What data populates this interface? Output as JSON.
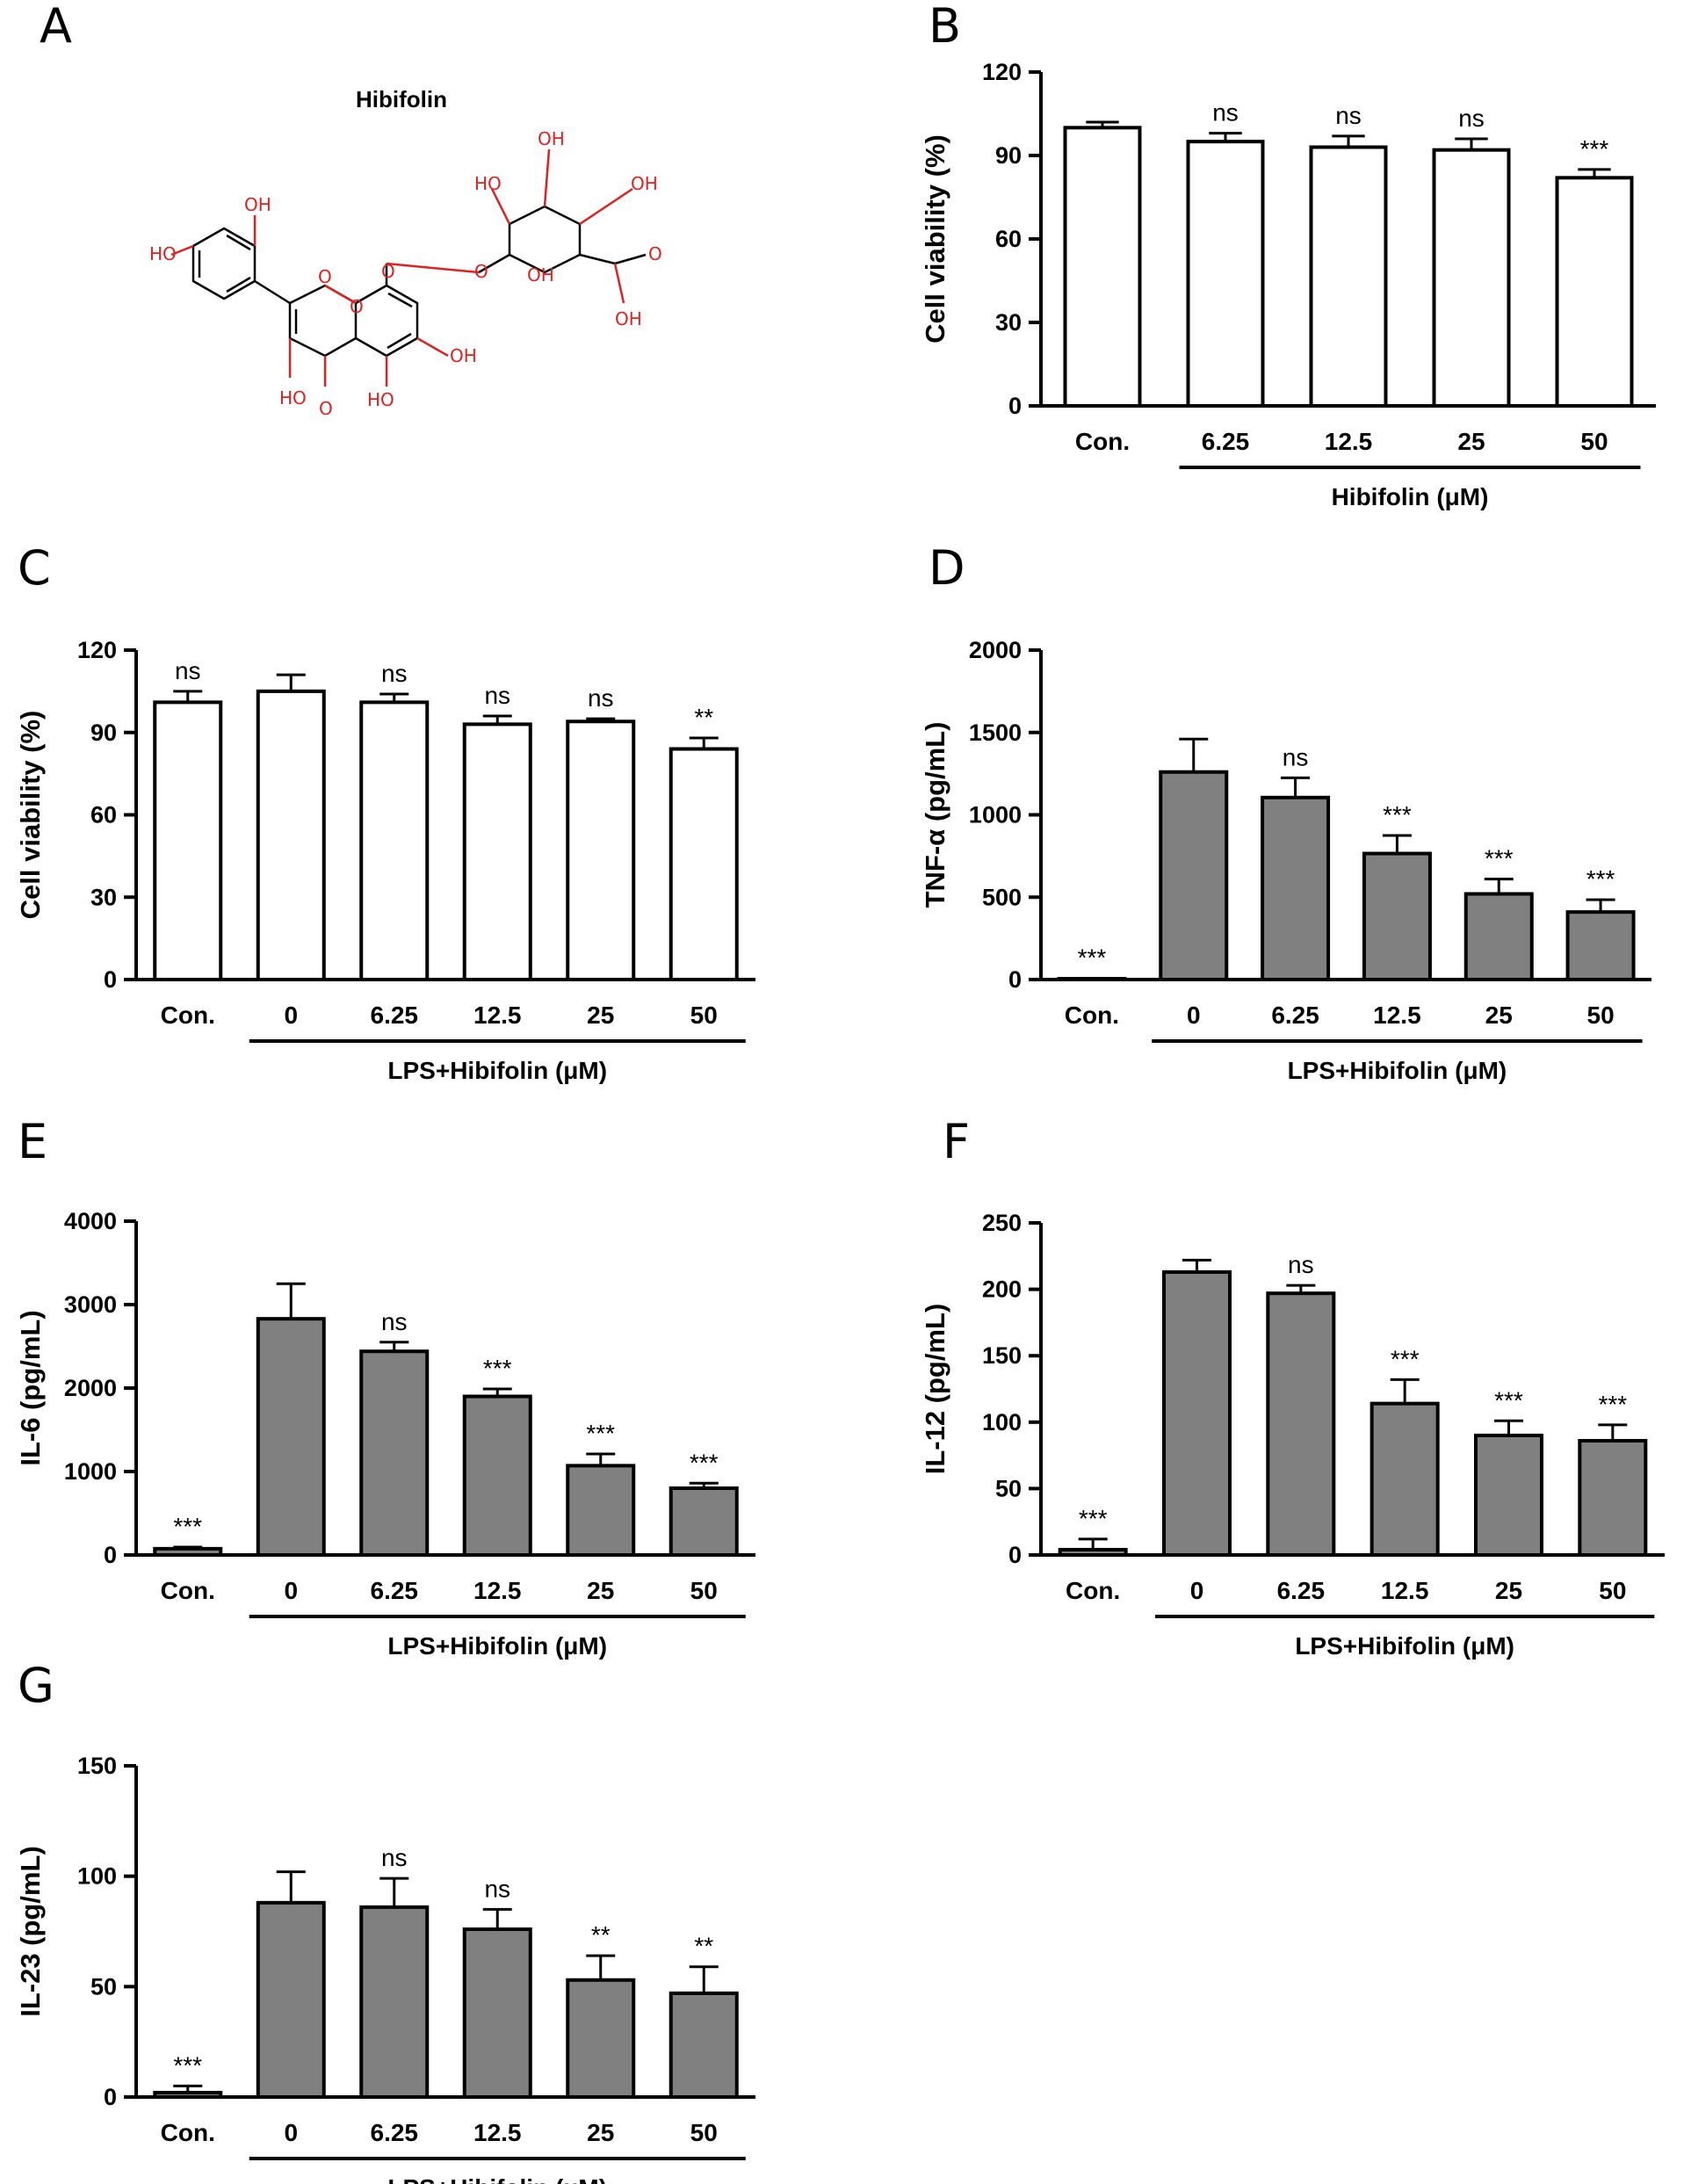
{
  "figure": {
    "panel_letters": [
      "A",
      "B",
      "C",
      "D",
      "E",
      "F",
      "G"
    ]
  },
  "structure": {
    "title": "Hibifolin",
    "atom_labels": [
      "OH",
      "HO",
      "HO",
      "OH",
      "OH",
      "HO",
      "O",
      "OH",
      "HO",
      "O",
      "OH",
      "O",
      "O",
      "OH",
      "O",
      "O"
    ]
  },
  "chart_data": [
    {
      "panel": "B",
      "type": "bar",
      "fill": "#ffffff",
      "title": "",
      "ylabel": "Cell viability (%)",
      "xlabel": "Hibifolin (μM)",
      "ylim": [
        0,
        120
      ],
      "yticks": [
        0,
        30,
        60,
        90,
        120
      ],
      "categories": [
        "Con.",
        "6.25",
        "12.5",
        "25",
        "50"
      ],
      "values": [
        100,
        95,
        93,
        92,
        82
      ],
      "errors": [
        2,
        3,
        4,
        4,
        3
      ],
      "significance": [
        "",
        "ns",
        "ns",
        "ns",
        "***"
      ],
      "treatment_start": 1
    },
    {
      "panel": "C",
      "type": "bar",
      "fill": "#ffffff",
      "title": "",
      "ylabel": "Cell viability (%)",
      "xlabel": "LPS+Hibifolin (μM)",
      "ylim": [
        0,
        120
      ],
      "yticks": [
        0,
        30,
        60,
        90,
        120
      ],
      "categories": [
        "Con.",
        "0",
        "6.25",
        "12.5",
        "25",
        "50"
      ],
      "values": [
        101,
        105,
        101,
        93,
        94,
        84
      ],
      "errors": [
        4,
        6,
        3,
        3,
        1,
        4
      ],
      "significance": [
        "ns",
        "",
        "ns",
        "ns",
        "ns",
        "**"
      ],
      "treatment_start": 1
    },
    {
      "panel": "D",
      "type": "bar",
      "fill": "#808080",
      "title": "",
      "ylabel": "TNF-α (pg/mL)",
      "xlabel": "LPS+Hibifolin (μM)",
      "ylim": [
        0,
        2000
      ],
      "yticks": [
        0,
        500,
        1000,
        1500,
        2000
      ],
      "categories": [
        "Con.",
        "0",
        "6.25",
        "12.5",
        "25",
        "50"
      ],
      "values": [
        5,
        1260,
        1105,
        765,
        520,
        410
      ],
      "errors": [
        3,
        200,
        120,
        110,
        90,
        75
      ],
      "significance": [
        "***",
        "",
        "ns",
        "***",
        "***",
        "***"
      ],
      "treatment_start": 1
    },
    {
      "panel": "E",
      "type": "bar",
      "fill": "#808080",
      "title": "",
      "ylabel": "IL-6 (pg/mL)",
      "xlabel": "LPS+Hibifolin (μM)",
      "ylim": [
        0,
        4000
      ],
      "yticks": [
        0,
        1000,
        2000,
        3000,
        4000
      ],
      "categories": [
        "Con.",
        "0",
        "6.25",
        "12.5",
        "25",
        "50"
      ],
      "values": [
        75,
        2830,
        2440,
        1900,
        1070,
        800
      ],
      "errors": [
        20,
        420,
        110,
        90,
        140,
        60
      ],
      "significance": [
        "***",
        "",
        "ns",
        "***",
        "***",
        "***"
      ],
      "treatment_start": 1
    },
    {
      "panel": "F",
      "type": "bar",
      "fill": "#808080",
      "title": "",
      "ylabel": "IL-12 (pg/mL)",
      "xlabel": "LPS+Hibifolin (μM)",
      "ylim": [
        0,
        250
      ],
      "yticks": [
        0,
        50,
        100,
        150,
        200,
        250
      ],
      "categories": [
        "Con.",
        "0",
        "6.25",
        "12.5",
        "25",
        "50"
      ],
      "values": [
        4,
        213,
        197,
        114,
        90,
        86
      ],
      "errors": [
        8,
        9,
        6,
        18,
        11,
        12
      ],
      "significance": [
        "***",
        "",
        "ns",
        "***",
        "***",
        "***"
      ],
      "treatment_start": 1
    },
    {
      "panel": "G",
      "type": "bar",
      "fill": "#808080",
      "title": "",
      "ylabel": "IL-23 (pg/mL)",
      "xlabel": "LPS+Hibifolin (μM)",
      "ylim": [
        0,
        150
      ],
      "yticks": [
        0,
        50,
        100,
        150
      ],
      "categories": [
        "Con.",
        "0",
        "6.25",
        "12.5",
        "25",
        "50"
      ],
      "values": [
        2,
        88,
        86,
        76,
        53,
        47
      ],
      "errors": [
        3,
        14,
        13,
        9,
        11,
        12
      ],
      "significance": [
        "***",
        "",
        "ns",
        "ns",
        "**",
        "**"
      ],
      "treatment_start": 1
    }
  ]
}
